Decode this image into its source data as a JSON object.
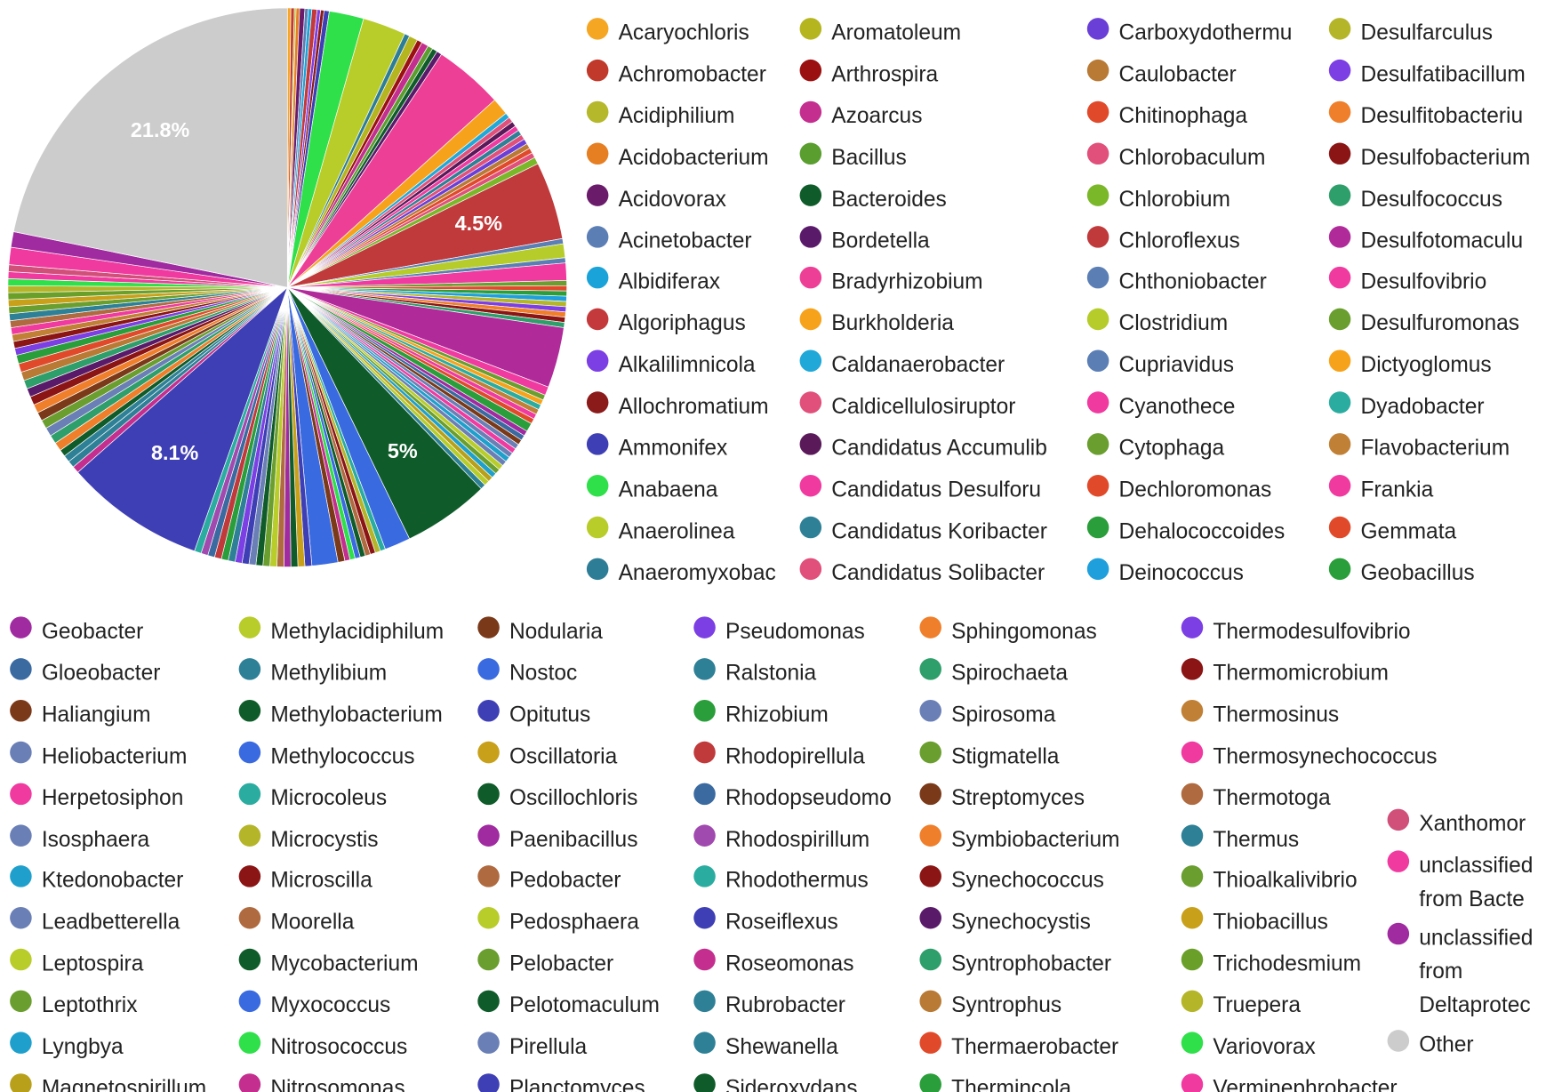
{
  "chart_data": {
    "type": "pie",
    "categories": [
      "Acaryochloris",
      "Achromobacter",
      "Acidiphilium",
      "Acidobacterium",
      "Acidovorax",
      "Acinetobacter",
      "Albidiferax",
      "Algoriphagus",
      "Alkalilimnicola",
      "Allochromatium",
      "Ammonifex",
      "Anabaena",
      "Anaerolinea",
      "Anaeromyxobac",
      "Aromatoleum",
      "Arthrospira",
      "Azoarcus",
      "Bacillus",
      "Bacteroides",
      "Bordetella",
      "Bradyrhizobium",
      "Burkholderia",
      "Caldanaerobacter",
      "Caldicellulosiruptor",
      "Candidatus Accumulib",
      "Candidatus Desulforu",
      "Candidatus Koribacter",
      "Candidatus Solibacter",
      "Carboxydothermu",
      "Caulobacter",
      "Chitinophaga",
      "Chlorobaculum",
      "Chlorobium",
      "Chloroflexus",
      "Chthoniobacter",
      "Clostridium",
      "Cupriavidus",
      "Cyanothece",
      "Cytophaga",
      "Dechloromonas",
      "Dehalococcoides",
      "Deinococcus",
      "Desulfarculus",
      "Desulfatibacillum",
      "Desulfitobacteriu",
      "Desulfobacterium",
      "Desulfococcus",
      "Desulfotomaculu",
      "Desulfovibrio",
      "Desulfuromonas",
      "Dictyoglomus",
      "Dyadobacter",
      "Flavobacterium",
      "Frankia",
      "Gemmata",
      "Geobacillus",
      "Geobacter",
      "Gloeobacter",
      "Haliangium",
      "Heliobacterium",
      "Herpetosiphon",
      "Isosphaera",
      "Ktedonobacter",
      "Leadbetterella",
      "Leptospira",
      "Leptothrix",
      "Lyngbya",
      "Magnetospirillum",
      "Methylacidiphilum",
      "Methylibium",
      "Methylobacterium",
      "Methylococcus",
      "Microcoleus",
      "Microcystis",
      "Microscilla",
      "Moorella",
      "Mycobacterium",
      "Myxococcus",
      "Nitrosococcus",
      "Nitrosomonas",
      "Nodularia",
      "Nostoc",
      "Opitutus",
      "Oscillatoria",
      "Oscillochloris",
      "Paenibacillus",
      "Pedobacter",
      "Pedosphaera",
      "Pelobacter",
      "Pelotomaculum",
      "Pirellula",
      "Planctomyces",
      "Pseudomonas",
      "Ralstonia",
      "Rhizobium",
      "Rhodopirellula",
      "Rhodopseudomo",
      "Rhodospirillum",
      "Rhodothermus",
      "Roseiflexus",
      "Roseomonas",
      "Rubrobacter",
      "Shewanella",
      "Sideroxydans",
      "Sphingomonas",
      "Spirochaeta",
      "Spirosoma",
      "Stigmatella",
      "Streptomyces",
      "Symbiobacterium",
      "Synechococcus",
      "Synechocystis",
      "Syntrophobacter",
      "Syntrophus",
      "Thermaerobacter",
      "Thermincola",
      "Thermodesulfovibrio",
      "Thermomicrobium",
      "Thermosinus",
      "Thermosynechococcus",
      "Thermotoga",
      "Thermus",
      "Thioalkalivibrio",
      "Thiobacillus",
      "Trichodesmium",
      "Truepera",
      "Variovorax",
      "Verminephrobacter",
      "Xanthomor",
      "unclassified from Bacte",
      "unclassified from Deltaprotec",
      "Other"
    ],
    "values": [
      0.2,
      0.2,
      0.1,
      0.2,
      0.3,
      0.2,
      0.2,
      0.3,
      0.2,
      0.2,
      0.3,
      2.0,
      2.5,
      0.3,
      0.5,
      0.3,
      0.4,
      0.3,
      0.3,
      0.3,
      4.0,
      1.0,
      0.3,
      0.3,
      0.3,
      0.3,
      0.3,
      0.3,
      0.3,
      0.3,
      0.3,
      0.3,
      0.4,
      4.5,
      0.3,
      0.8,
      0.3,
      1.0,
      0.3,
      0.3,
      0.3,
      0.3,
      0.3,
      0.3,
      0.3,
      0.3,
      0.3,
      3.5,
      0.5,
      0.3,
      0.3,
      0.3,
      0.3,
      0.3,
      0.3,
      0.5,
      0.3,
      0.3,
      0.3,
      0.3,
      0.3,
      0.3,
      0.3,
      0.3,
      0.3,
      0.3,
      0.3,
      0.3,
      0.3,
      0.3,
      5,
      1.5,
      0.3,
      0.3,
      0.3,
      0.3,
      0.3,
      0.3,
      0.3,
      0.3,
      0.4,
      1.5,
      0.4,
      0.4,
      0.4,
      0.4,
      0.4,
      0.4,
      0.4,
      0.4,
      0.4,
      0.4,
      0.4,
      0.4,
      0.4,
      0.4,
      0.4,
      0.4,
      0.4,
      8.1,
      0.4,
      0.4,
      0.4,
      0.4,
      0.5,
      0.5,
      0.5,
      0.5,
      0.5,
      0.5,
      0.5,
      0.5,
      0.5,
      0.5,
      0.5,
      0.5,
      0.4,
      0.4,
      0.4,
      0.4,
      0.4,
      0.4,
      0.4,
      0.4,
      0.4,
      0.4,
      0.4,
      0.4,
      0.4,
      1.0,
      0.9,
      21.8
    ],
    "value_labels": [
      null,
      null,
      null,
      null,
      null,
      null,
      null,
      null,
      null,
      null,
      null,
      null,
      null,
      null,
      null,
      null,
      null,
      null,
      null,
      null,
      null,
      null,
      null,
      null,
      null,
      null,
      null,
      null,
      null,
      null,
      null,
      null,
      null,
      "4.5%",
      null,
      null,
      null,
      null,
      null,
      null,
      null,
      null,
      null,
      null,
      null,
      null,
      null,
      null,
      null,
      null,
      null,
      null,
      null,
      null,
      null,
      null,
      null,
      null,
      null,
      null,
      null,
      null,
      null,
      null,
      null,
      null,
      null,
      null,
      null,
      null,
      "5%",
      null,
      null,
      null,
      null,
      null,
      null,
      null,
      null,
      null,
      null,
      null,
      null,
      null,
      null,
      null,
      null,
      null,
      null,
      null,
      null,
      null,
      null,
      null,
      null,
      null,
      null,
      null,
      null,
      "8.1%",
      null,
      null,
      null,
      null,
      null,
      null,
      null,
      null,
      null,
      null,
      null,
      null,
      null,
      null,
      null,
      null,
      null,
      null,
      null,
      null,
      null,
      null,
      null,
      null,
      null,
      null,
      null,
      null,
      null,
      null,
      null,
      "21.8%"
    ],
    "colors": [
      "#f5a623",
      "#c0392b",
      "#b5b82a",
      "#e67e22",
      "#6a1b6a",
      "#5b7fb5",
      "#1aa3d9",
      "#c4393b",
      "#7b3fe4",
      "#8b1a1a",
      "#3f3fb5",
      "#2fe04a",
      "#b8cc2a",
      "#2e7d96",
      "#b5b51f",
      "#9b1111",
      "#c42f8f",
      "#5a9e2f",
      "#0f5c2a",
      "#5a1a6a",
      "#ee3f96",
      "#f7a21b",
      "#20a8d8",
      "#e0507a",
      "#5a1a5a",
      "#f03aa0",
      "#2e8096",
      "#e0507a",
      "#6a3fd8",
      "#b87a35",
      "#e04a2a",
      "#e0507a",
      "#7ab82a",
      "#c0393b",
      "#5b7fb5",
      "#b5cc2a",
      "#5b7fb5",
      "#f03aa0",
      "#6a9e2f",
      "#e04a2a",
      "#2a9e3a",
      "#1fa0dd",
      "#b5b52a",
      "#7b3fe4",
      "#ef7f2a",
      "#8b1515",
      "#2e9e6a",
      "#b02a9a",
      "#f03aa0",
      "#6a9e2f",
      "#f7a21b",
      "#2aada0",
      "#c08035",
      "#f03aa0",
      "#e04a2a",
      "#2a9e3a",
      "#a02aa0",
      "#3a6aa0",
      "#7a3a1a",
      "#6a7fb5",
      "#f03aa0",
      "#6a7fb5",
      "#1fa0cc",
      "#6a7fb5",
      "#b8cc2a",
      "#6a9e2f",
      "#1fa0cc",
      "#b8a01a",
      "#b8cc2a",
      "#2e8096",
      "#0f5c2a",
      "#3a6ae0",
      "#2aada0",
      "#b5b52a",
      "#8b1515",
      "#b06a40",
      "#0f5c2a",
      "#3a6ae0",
      "#2fe04a",
      "#c42f8f",
      "#7a3a1a",
      "#3a6ae0",
      "#3f3fb5",
      "#c8a01a",
      "#0f5c2a",
      "#a02aa0",
      "#b06a40",
      "#b8cc2a",
      "#6a9e2f",
      "#0f5c2a",
      "#6a7fb5",
      "#3f3fb5",
      "#7b3fe4",
      "#2e8096",
      "#2a9e3a",
      "#c0393b",
      "#3a6aa0",
      "#a04ab0",
      "#2aada0",
      "#3f3fb5",
      "#c42f8f",
      "#2e8096",
      "#2e8096",
      "#0f5c2a",
      "#ef7f2a",
      "#2e9e6a",
      "#6a7fb5",
      "#6a9e2f",
      "#7a3a1a",
      "#ef7f2a",
      "#8b1515",
      "#5a1a6a",
      "#2e9e6a",
      "#b87a35",
      "#e04a2a",
      "#2a9e3a",
      "#7b3fe4",
      "#8b1515",
      "#c08035",
      "#f03aa0",
      "#b06a40",
      "#2e8096",
      "#6a9e2f",
      "#c8a01a",
      "#6aa02a",
      "#b5b52a",
      "#2fe04a",
      "#f03aa0",
      "#d0507a",
      "#f03aa0",
      "#a02aa0",
      "#cccccc"
    ]
  }
}
